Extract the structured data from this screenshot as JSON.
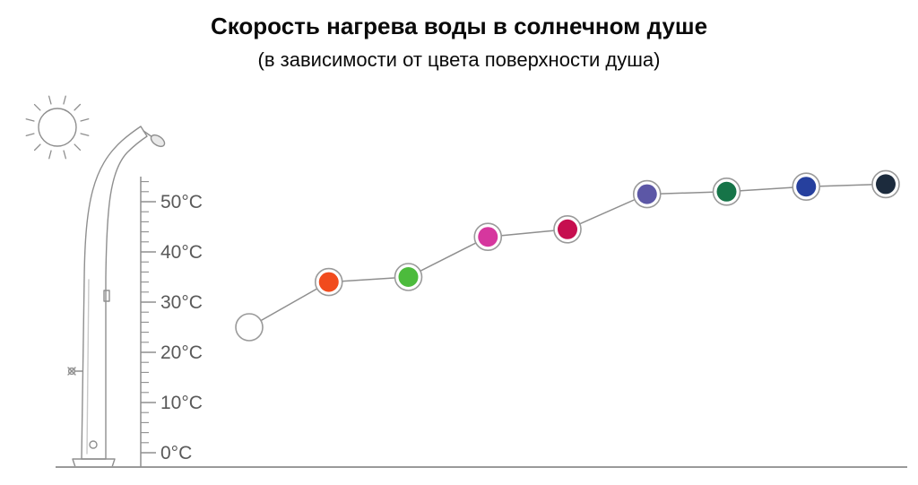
{
  "chart_data": {
    "type": "line",
    "title": "Скорость нагрева воды в солнечном душе",
    "subtitle": "(в зависимости от цвета поверхности душа)",
    "ylim": [
      0,
      55
    ],
    "yticks": [
      0,
      10,
      20,
      30,
      40,
      50
    ],
    "ytick_labels": [
      "0°C",
      "10°C",
      "20°C",
      "30°C",
      "40°C",
      "50°C"
    ],
    "grid": false,
    "legend": false,
    "marker_style": {
      "ring_fill": "#ffffff",
      "ring_color": "#9a9a9a",
      "line_color": "#8f8f8f"
    },
    "series": [
      {
        "name": "water-temperature-by-surface-color",
        "points": [
          {
            "surface_color": "white",
            "hex": "#ffffff",
            "temp_c": 25
          },
          {
            "surface_color": "orange-red",
            "hex": "#f14b1d",
            "temp_c": 34
          },
          {
            "surface_color": "green",
            "hex": "#4cbb3c",
            "temp_c": 35
          },
          {
            "surface_color": "magenta-pink",
            "hex": "#d6379e",
            "temp_c": 43
          },
          {
            "surface_color": "crimson",
            "hex": "#c60e4f",
            "temp_c": 44.5
          },
          {
            "surface_color": "violet",
            "hex": "#5c57a6",
            "temp_c": 51.5
          },
          {
            "surface_color": "dark-green",
            "hex": "#167448",
            "temp_c": 52
          },
          {
            "surface_color": "blue",
            "hex": "#26409e",
            "temp_c": 53
          },
          {
            "surface_color": "dark-navy",
            "hex": "#1c2b3d",
            "temp_c": 53.5
          }
        ]
      }
    ]
  },
  "illustration": {
    "icons": [
      "sun-icon",
      "solar-shower-icon",
      "temperature-ruler"
    ]
  }
}
